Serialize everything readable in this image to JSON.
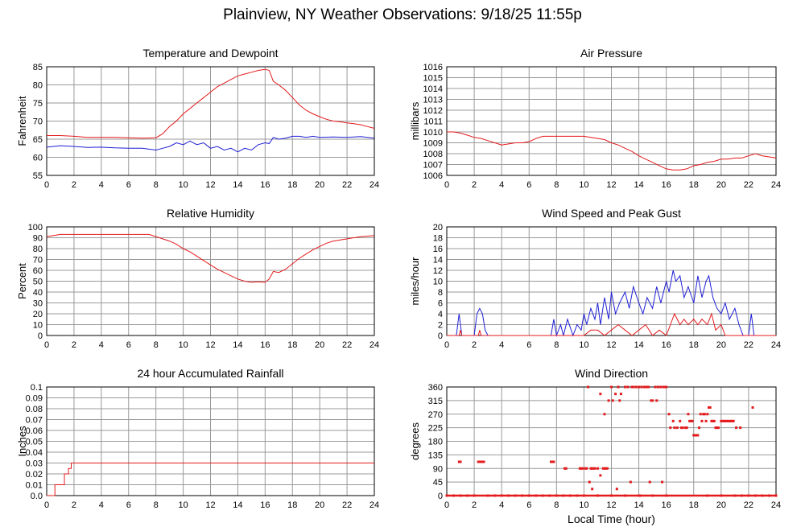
{
  "page_title": "Plainview, NY Weather Observations: 9/18/25 11:55p",
  "bottom_xlabel": "Local Time (hour)",
  "colors": {
    "red": "#e41a1c",
    "blue": "#1f1fd6",
    "grid": "#999999"
  },
  "chart_data": [
    {
      "type": "line",
      "title": "Temperature and Dewpoint",
      "xlabel": "",
      "ylabel": "Fahrenheit",
      "xlim": [
        0,
        24
      ],
      "ylim": [
        55,
        85
      ],
      "xticks": [
        0,
        2,
        4,
        6,
        8,
        10,
        12,
        14,
        16,
        18,
        20,
        22,
        24
      ],
      "yticks": [
        55,
        60,
        65,
        70,
        75,
        80,
        85
      ],
      "grid": true,
      "series": [
        {
          "color": "#e41a1c",
          "x": [
            0,
            1,
            2,
            3,
            4,
            5,
            6,
            7,
            8,
            8.5,
            9,
            9.5,
            10,
            10.5,
            11,
            11.5,
            12,
            12.5,
            13,
            13.5,
            14,
            14.5,
            15,
            15.5,
            16,
            16.3,
            16.6,
            17,
            17.5,
            18,
            18.5,
            19,
            19.5,
            20,
            20.5,
            21,
            21.5,
            22,
            22.5,
            23,
            23.5,
            24
          ],
          "y": [
            66,
            66,
            65.8,
            65.5,
            65.5,
            65.5,
            65.4,
            65.3,
            65.4,
            66.5,
            68.5,
            70,
            72,
            73.5,
            75,
            76.5,
            78,
            79.5,
            80.5,
            81.5,
            82.5,
            83,
            83.5,
            84,
            84.3,
            84,
            81,
            80,
            78.5,
            76.5,
            74.5,
            73,
            72,
            71.2,
            70.5,
            70,
            69.8,
            69.5,
            69.3,
            69,
            68.5,
            68
          ]
        },
        {
          "color": "#1f1fd6",
          "x": [
            0,
            1,
            2,
            3,
            4,
            5,
            6,
            7,
            8,
            8.5,
            9,
            9.5,
            10,
            10.5,
            11,
            11.5,
            12,
            12.5,
            13,
            13.5,
            14,
            14.5,
            15,
            15.5,
            16,
            16.3,
            16.6,
            17,
            17.5,
            18,
            18.5,
            19,
            19.5,
            20,
            21,
            22,
            23,
            24
          ],
          "y": [
            62.8,
            63.2,
            63,
            62.7,
            62.8,
            62.6,
            62.5,
            62.5,
            62,
            62.5,
            63,
            64,
            63.5,
            64.5,
            63.5,
            64,
            62.5,
            63,
            62,
            62.5,
            61.5,
            62.5,
            62,
            63.5,
            64,
            63.8,
            65.5,
            65,
            65.3,
            65.8,
            65.8,
            65.5,
            65.8,
            65.5,
            65.6,
            65.5,
            65.7,
            65.3
          ]
        }
      ]
    },
    {
      "type": "line",
      "title": "Air Pressure",
      "xlabel": "",
      "ylabel": "millibars",
      "xlim": [
        0,
        24
      ],
      "ylim": [
        1006,
        1016
      ],
      "xticks": [
        0,
        2,
        4,
        6,
        8,
        10,
        12,
        14,
        16,
        18,
        20,
        22,
        24
      ],
      "yticks": [
        1006,
        1007,
        1008,
        1009,
        1010,
        1011,
        1012,
        1013,
        1014,
        1015,
        1016
      ],
      "grid": true,
      "series": [
        {
          "color": "#e41a1c",
          "x": [
            0,
            0.5,
            1,
            1.5,
            2,
            2.5,
            3,
            3.5,
            4,
            4.5,
            5,
            5.5,
            6,
            6.5,
            7,
            7.5,
            8,
            8.5,
            9,
            9.5,
            10,
            10.5,
            11,
            11.5,
            12,
            12.5,
            13,
            13.5,
            14,
            14.5,
            15,
            15.5,
            16,
            16.5,
            17,
            17.5,
            18,
            18.5,
            19,
            19.5,
            20,
            20.5,
            21,
            21.5,
            22,
            22.5,
            23,
            23.5,
            24
          ],
          "y": [
            1010,
            1010,
            1009.9,
            1009.7,
            1009.5,
            1009.4,
            1009.2,
            1009,
            1008.8,
            1008.9,
            1009,
            1009,
            1009.1,
            1009.4,
            1009.6,
            1009.6,
            1009.6,
            1009.6,
            1009.6,
            1009.6,
            1009.6,
            1009.5,
            1009.4,
            1009.3,
            1009,
            1008.8,
            1008.5,
            1008.2,
            1007.8,
            1007.5,
            1007.2,
            1006.9,
            1006.6,
            1006.5,
            1006.5,
            1006.6,
            1006.9,
            1007,
            1007.2,
            1007.3,
            1007.5,
            1007.5,
            1007.6,
            1007.6,
            1007.8,
            1008,
            1007.8,
            1007.7,
            1007.6
          ]
        }
      ]
    },
    {
      "type": "line",
      "title": "Relative Humidity",
      "xlabel": "",
      "ylabel": "Percent",
      "xlim": [
        0,
        24
      ],
      "ylim": [
        0,
        100
      ],
      "xticks": [
        0,
        2,
        4,
        6,
        8,
        10,
        12,
        14,
        16,
        18,
        20,
        22,
        24
      ],
      "yticks": [
        0,
        10,
        20,
        30,
        40,
        50,
        60,
        70,
        80,
        90,
        100
      ],
      "grid": true,
      "series": [
        {
          "color": "#e41a1c",
          "x": [
            0,
            0.5,
            1,
            2,
            3,
            4,
            5,
            6,
            7,
            7.5,
            8,
            8.5,
            9,
            9.5,
            10,
            10.5,
            11,
            11.5,
            12,
            12.5,
            13,
            13.5,
            14,
            14.5,
            15,
            15.5,
            16,
            16.3,
            16.6,
            17,
            17.5,
            18,
            18.5,
            19,
            19.5,
            20,
            20.5,
            21,
            21.5,
            22,
            22.5,
            23,
            23.5,
            24
          ],
          "y": [
            91,
            92,
            93,
            93,
            93,
            93,
            93,
            93,
            93,
            93,
            91,
            89,
            87,
            84,
            80,
            77,
            73,
            69,
            65,
            61,
            58,
            55,
            52,
            50,
            49,
            49.5,
            49,
            52,
            59,
            58,
            61,
            66,
            71,
            75,
            79,
            82,
            85,
            87,
            88,
            89,
            90,
            91,
            91.5,
            92
          ]
        }
      ]
    },
    {
      "type": "line",
      "title": "Wind Speed and Peak Gust",
      "xlabel": "",
      "ylabel": "miles/hour",
      "xlim": [
        0,
        24
      ],
      "ylim": [
        0,
        20
      ],
      "xticks": [
        0,
        2,
        4,
        6,
        8,
        10,
        12,
        14,
        16,
        18,
        20,
        22,
        24
      ],
      "yticks": [
        0,
        2,
        4,
        6,
        8,
        10,
        12,
        14,
        16,
        18,
        20
      ],
      "grid": true,
      "series": [
        {
          "color": "#1f1fd6",
          "x": [
            0,
            0.7,
            0.9,
            1.1,
            2,
            2.2,
            2.4,
            2.6,
            2.8,
            3,
            7.6,
            7.8,
            8,
            8.3,
            8.5,
            8.8,
            9.2,
            9.5,
            9.8,
            10,
            10.2,
            10.5,
            10.8,
            11,
            11.2,
            11.5,
            11.8,
            12,
            12.3,
            12.6,
            13,
            13.3,
            13.6,
            14,
            14.3,
            14.6,
            15,
            15.3,
            15.6,
            16,
            16.2,
            16.5,
            16.7,
            17,
            17.3,
            17.6,
            18,
            18.3,
            18.6,
            18.9,
            19.1,
            19.4,
            19.7,
            20,
            20.3,
            20.6,
            21,
            21.3,
            21.6,
            22,
            22.2,
            22.4,
            22.6,
            24
          ],
          "y": [
            0,
            0,
            4,
            0,
            0,
            4,
            5,
            4,
            1,
            0,
            0,
            3,
            0,
            2,
            0,
            3,
            0,
            2,
            1,
            4,
            2,
            5,
            3,
            6,
            2,
            7,
            3,
            8,
            4,
            6,
            8,
            5,
            9,
            6,
            4,
            7,
            5,
            9,
            6,
            10,
            8,
            12,
            10,
            11,
            7,
            9,
            6,
            11,
            7,
            10,
            11,
            7,
            5,
            4,
            6,
            3,
            5,
            2,
            0,
            0,
            4,
            0,
            0,
            0
          ]
        },
        {
          "color": "#e41a1c",
          "x": [
            0,
            0.9,
            1,
            1.1,
            2.3,
            2.4,
            2.5,
            10,
            10.5,
            11,
            11.5,
            12,
            12.5,
            13,
            13.5,
            14,
            14.5,
            15,
            15.5,
            16,
            16.3,
            16.6,
            17,
            17.3,
            17.6,
            18,
            18.3,
            18.6,
            19,
            19.3,
            19.6,
            20,
            20.3,
            24
          ],
          "y": [
            0,
            0,
            1,
            0,
            0,
            1,
            0,
            0,
            1,
            1,
            0,
            1,
            2,
            1,
            0,
            1,
            2,
            0,
            1,
            0,
            2,
            4,
            2,
            3,
            2,
            3,
            2,
            3,
            2,
            4,
            1,
            2,
            0,
            0
          ]
        }
      ]
    },
    {
      "type": "line",
      "title": "24 hour Accumulated Rainfall",
      "xlabel": "",
      "ylabel": "Inches",
      "xlim": [
        0,
        24
      ],
      "ylim": [
        0,
        0.1
      ],
      "xticks": [
        0,
        2,
        4,
        6,
        8,
        10,
        12,
        14,
        16,
        18,
        20,
        22,
        24
      ],
      "yticks": [
        0.0,
        0.01,
        0.02,
        0.03,
        0.04,
        0.05,
        0.06,
        0.07,
        0.08,
        0.09,
        0.1
      ],
      "ytick_labels": [
        "0.0",
        "0.01",
        "0.02",
        "0.03",
        "0.04",
        "0.05",
        "0.06",
        "0.07",
        "0.08",
        "0.09",
        "0.1"
      ],
      "grid": true,
      "series": [
        {
          "color": "#e41a1c",
          "x": [
            0,
            0.6,
            0.6,
            1.3,
            1.3,
            1.6,
            1.6,
            1.8,
            1.8,
            24
          ],
          "y": [
            0,
            0,
            0.01,
            0.01,
            0.02,
            0.02,
            0.025,
            0.025,
            0.03,
            0.03
          ]
        }
      ]
    },
    {
      "type": "scatter",
      "title": "Wind Direction",
      "xlabel": "Local Time (hour)",
      "ylabel": "degrees",
      "xlim": [
        0,
        24
      ],
      "ylim": [
        0,
        360
      ],
      "xticks": [
        0,
        2,
        4,
        6,
        8,
        10,
        12,
        14,
        16,
        18,
        20,
        22,
        24
      ],
      "yticks": [
        0,
        45,
        90,
        135,
        180,
        225,
        270,
        315,
        360
      ],
      "grid": true,
      "series": [
        {
          "color": "#e41a1c",
          "x": [
            0.9,
            1.0,
            2.3,
            2.4,
            2.5,
            2.6,
            2.7,
            7.6,
            7.7,
            7.8,
            8.6,
            8.7,
            9.7,
            9.8,
            9.9,
            10.1,
            10.2,
            10.3,
            10.5,
            10.6,
            10.7,
            10.8,
            11.0,
            11.2,
            11.4,
            11.5,
            11.6,
            11.7,
            11.8,
            12.0,
            12.1,
            12.3,
            12.5,
            12.6,
            12.7,
            13.0,
            13.2,
            13.5,
            13.6,
            13.8,
            14.0,
            14.2,
            14.4,
            14.5,
            14.6,
            14.7,
            14.9,
            15.0,
            15.2,
            15.3,
            15.4,
            15.6,
            15.8,
            15.9,
            16.0,
            16.2,
            16.3,
            16.5,
            16.6,
            16.8,
            17.0,
            17.1,
            17.2,
            17.4,
            17.5,
            17.6,
            17.7,
            17.8,
            17.9,
            18.0,
            18.1,
            18.2,
            18.3,
            18.4,
            18.5,
            18.6,
            18.7,
            18.8,
            18.9,
            19.0,
            19.1,
            19.2,
            19.3,
            19.4,
            19.5,
            19.6,
            19.7,
            19.8,
            20.0,
            20.1,
            20.2,
            20.3,
            20.4,
            20.5,
            20.6,
            20.7,
            20.8,
            20.9,
            21.1,
            21.4,
            22.3,
            10.4,
            10.6,
            11.2,
            11.5,
            12.4,
            13.4,
            14.1,
            14.8,
            15.7
          ],
          "y": [
            112,
            112,
            112,
            112,
            112,
            112,
            112,
            112,
            112,
            112,
            90,
            90,
            90,
            90,
            90,
            90,
            90,
            360,
            90,
            90,
            90,
            90,
            90,
            337,
            90,
            270,
            90,
            90,
            315,
            360,
            315,
            337,
            360,
            315,
            337,
            360,
            360,
            360,
            360,
            360,
            360,
            360,
            360,
            360,
            360,
            360,
            315,
            315,
            360,
            315,
            360,
            360,
            360,
            360,
            360,
            270,
            225,
            247,
            225,
            225,
            247,
            225,
            225,
            225,
            225,
            270,
            247,
            247,
            247,
            200,
            200,
            200,
            200,
            225,
            270,
            247,
            270,
            270,
            247,
            270,
            292,
            292,
            247,
            247,
            247,
            225,
            225,
            225,
            247,
            247,
            247,
            247,
            247,
            247,
            247,
            247,
            247,
            247,
            225,
            225,
            292,
            45,
            22,
            67,
            90,
            22,
            45,
            0,
            45,
            45
          ]
        },
        {
          "color": "#e41a1c",
          "x": [
            0,
            0.5,
            1.0,
            1.5,
            2.0,
            3.0,
            3.5,
            4.0,
            4.5,
            5.0,
            5.5,
            6.0,
            6.5,
            7.0,
            7.5,
            8.0,
            8.5,
            9.0,
            9.5,
            10.0,
            11.0,
            12.0,
            13.0,
            14.0,
            15.0,
            16.0,
            19.0,
            20.0,
            21.0,
            21.5,
            22.0,
            22.5,
            23.0,
            23.5,
            24.0
          ],
          "y": [
            0,
            0,
            0,
            0,
            0,
            0,
            0,
            0,
            0,
            0,
            0,
            0,
            0,
            0,
            0,
            0,
            0,
            0,
            0,
            0,
            0,
            0,
            0,
            0,
            0,
            0,
            0,
            0,
            0,
            0,
            0,
            0,
            0,
            0,
            0
          ]
        }
      ]
    }
  ]
}
